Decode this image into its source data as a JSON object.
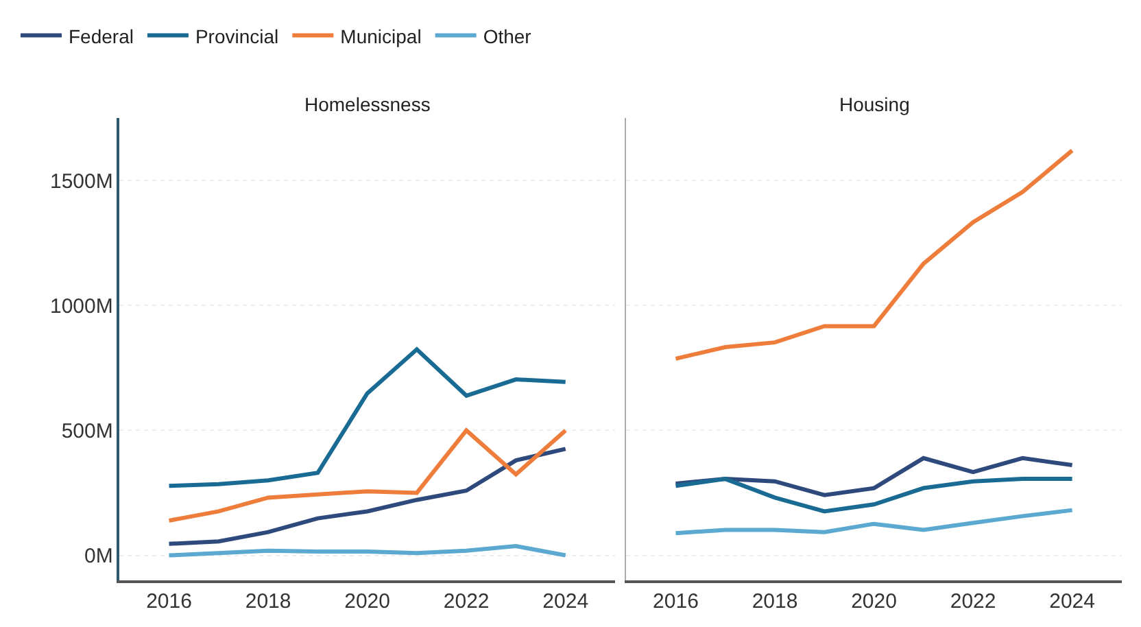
{
  "chart_data": [
    {
      "type": "line",
      "title": "Homelessness",
      "x": [
        2016,
        2017,
        2018,
        2019,
        2020,
        2021,
        2022,
        2023,
        2024
      ],
      "xlim": [
        2015,
        2025
      ],
      "xticks": [
        2016,
        2018,
        2020,
        2022,
        2024
      ],
      "ylim": [
        -100,
        1750
      ],
      "yticks": [
        {
          "value": 0,
          "label": "0M"
        },
        {
          "value": 500,
          "label": "500M"
        },
        {
          "value": 1000,
          "label": "1000M"
        },
        {
          "value": 1500,
          "label": "1500M"
        }
      ],
      "grid": "y",
      "legend": "top left",
      "marker": "none",
      "line_style": "solid",
      "series": [
        {
          "name": "Federal",
          "color": "#2e4a7d",
          "values": [
            46,
            56,
            93,
            148,
            176,
            222,
            259,
            380,
            426
          ]
        },
        {
          "name": "Provincial",
          "color": "#1a6b94",
          "values": [
            278,
            285,
            300,
            330,
            648,
            824,
            639,
            704,
            694
          ]
        },
        {
          "name": "Municipal",
          "color": "#ee7d3b",
          "values": [
            139,
            176,
            231,
            244,
            256,
            250,
            500,
            324,
            500
          ]
        },
        {
          "name": "Other",
          "color": "#5ba8d0",
          "values": [
            0,
            9,
            19,
            15,
            15,
            9,
            19,
            37,
            0
          ]
        }
      ]
    },
    {
      "type": "line",
      "title": "Housing",
      "x": [
        2016,
        2017,
        2018,
        2019,
        2020,
        2021,
        2022,
        2023,
        2024
      ],
      "xlim": [
        2015,
        2025
      ],
      "xticks": [
        2016,
        2018,
        2020,
        2022,
        2024
      ],
      "ylim": [
        -100,
        1750
      ],
      "yticks": [
        {
          "value": 0,
          "label": null
        },
        {
          "value": 500,
          "label": null
        },
        {
          "value": 1000,
          "label": null
        },
        {
          "value": 1500,
          "label": null
        }
      ],
      "tick_labels": "x",
      "grid": "y",
      "legend": false,
      "marker": "none",
      "line_style": "solid",
      "series": [
        {
          "color": "#2e4a7d",
          "values": [
            287,
            306,
            296,
            241,
            269,
            389,
            333,
            389,
            361
          ]
        },
        {
          "color": "#1a6b94",
          "values": [
            278,
            306,
            231,
            176,
            204,
            269,
            296,
            306,
            306
          ]
        },
        {
          "color": "#ee7d3b",
          "values": [
            787,
            833,
            852,
            917,
            917,
            1167,
            1333,
            1454,
            1620
          ]
        },
        {
          "color": "#5ba8d0",
          "values": [
            89,
            102,
            102,
            93,
            126,
            102,
            130,
            157,
            181
          ]
        }
      ]
    }
  ]
}
